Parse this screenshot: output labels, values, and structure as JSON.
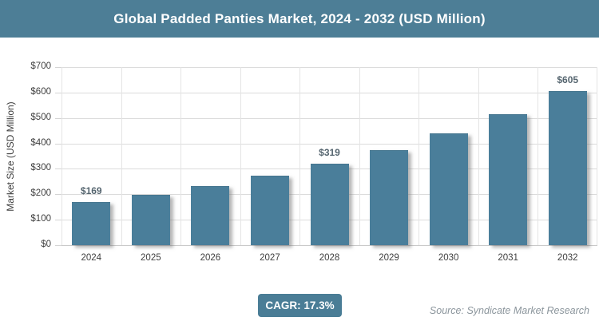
{
  "header": {
    "title": "Global Padded Panties Market, 2024 - 2032 (USD Million)"
  },
  "chart_data": {
    "type": "bar",
    "title": "Global Padded Panties Market, 2024 - 2032 (USD Million)",
    "categories": [
      "2024",
      "2025",
      "2026",
      "2027",
      "2028",
      "2029",
      "2030",
      "2031",
      "2032"
    ],
    "values": [
      169,
      198,
      232,
      272,
      319,
      375,
      440,
      515,
      605
    ],
    "data_labels": [
      "$169",
      null,
      null,
      null,
      "$319",
      null,
      null,
      null,
      "$605"
    ],
    "xlabel": "",
    "ylabel": "Market Size (USD Million)",
    "ylim": [
      0,
      700
    ],
    "ytick_step": 100,
    "ytick_prefix": "$",
    "grid": "horizontal and vertical light gray gridlines",
    "legend": false
  },
  "footer": {
    "cagr_label": "CAGR: 17.3%",
    "source": "Source: Syndicate Market Research"
  },
  "colors": {
    "header_bg": "#4d7e96",
    "badge_bg": "#4a7d96",
    "bar": "#4a7e9a",
    "data_label": "#55656f",
    "source_text": "#8b959c"
  }
}
